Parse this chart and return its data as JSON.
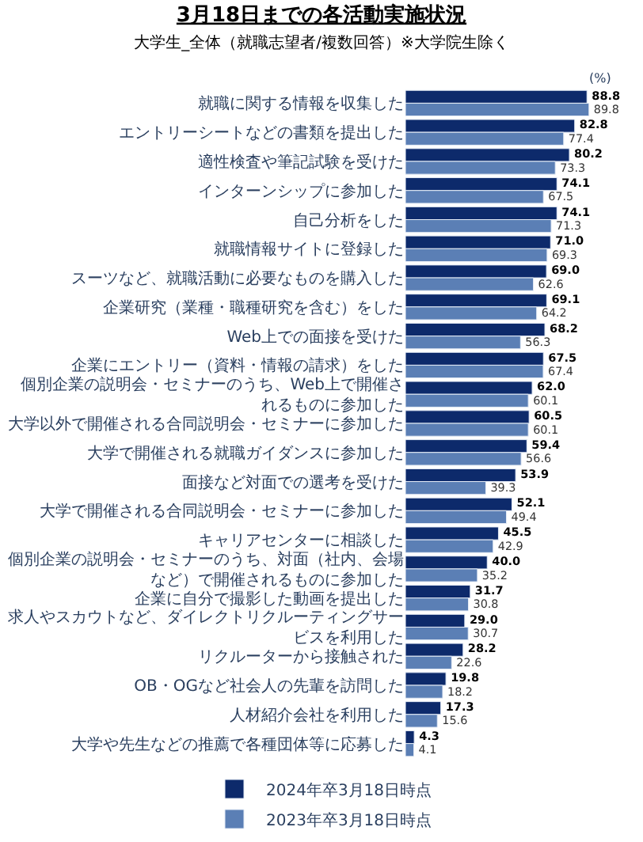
{
  "chart_data": {
    "type": "bar",
    "orientation": "horizontal",
    "title": "3月18日までの各活動実施状況",
    "subtitle": "大学生_全体（就職志望者/複数回答）※大学院生除く",
    "annotations": [
      "(%)"
    ],
    "categories": [
      "就職に関する情報を収集した",
      "エントリーシートなどの書類を提出した",
      "適性検査や筆記試験を受けた",
      "インターンシップに参加した",
      "自己分析をした",
      "就職情報サイトに登録した",
      "スーツなど、就職活動に必要なものを購入した",
      "企業研究（業種・職種研究を含む）をした",
      "Web上での面接を受けた",
      "企業にエントリー（資料・情報の請求）をした",
      "個別企業の説明会・セミナーのうち、Web上で開催されるものに参加した",
      "大学以外で開催される合同説明会・セミナーに参加した",
      "大学で開催される就職ガイダンスに参加した",
      "面接など対面での選考を受けた",
      "大学で開催される合同説明会・セミナーに参加した",
      "キャリアセンターに相談した",
      "個別企業の説明会・セミナーのうち、対面（社内、会場など）で開催されるものに参加した",
      "企業に自分で撮影した動画を提出した",
      "求人やスカウトなど、ダイレクトリクルーティングサービスを利用した",
      "リクルーターから接触された",
      "OB・OGなど社会人の先輩を訪問した",
      "人材紹介会社を利用した",
      "大学や先生などの推薦で各種団体等に応募した"
    ],
    "series": [
      {
        "name": "2024年卒3月18日時点",
        "color": "#0d2a6b",
        "values": [
          88.8,
          82.8,
          80.2,
          74.1,
          74.1,
          71.0,
          69.0,
          69.1,
          68.2,
          67.5,
          62.0,
          60.5,
          59.4,
          53.9,
          52.1,
          45.5,
          40.0,
          31.7,
          29.0,
          28.2,
          19.8,
          17.3,
          4.3
        ],
        "value_labels": [
          "88.8",
          "82.8",
          "80.2",
          "74.1",
          "74.1",
          "71.0",
          "69.0",
          "69.1",
          "68.2",
          "67.5",
          "62.0",
          "60.5",
          "59.4",
          "53.9",
          "52.1",
          "45.5",
          "40.0",
          "31.7",
          "29.0",
          "28.2",
          "19.8",
          "17.3",
          "4.3"
        ]
      },
      {
        "name": "2023年卒3月18日時点",
        "color": "#5b7fb5",
        "values": [
          89.8,
          77.4,
          73.3,
          67.5,
          71.3,
          69.3,
          62.6,
          64.2,
          56.3,
          67.4,
          60.1,
          60.1,
          56.6,
          39.3,
          49.4,
          42.9,
          35.2,
          30.8,
          30.7,
          22.6,
          18.2,
          15.6,
          4.1
        ],
        "value_labels": [
          "89.8",
          "77.4",
          "73.3",
          "67.5",
          "71.3",
          "69.3",
          "62.6",
          "64.2",
          "56.3",
          "67.4",
          "60.1",
          "60.1",
          "56.6",
          "39.3",
          "49.4",
          "42.9",
          "35.2",
          "30.8",
          "30.7",
          "22.6",
          "18.2",
          "15.6",
          "4.1"
        ]
      }
    ],
    "tick_labels": "y",
    "legend": "bottom"
  }
}
